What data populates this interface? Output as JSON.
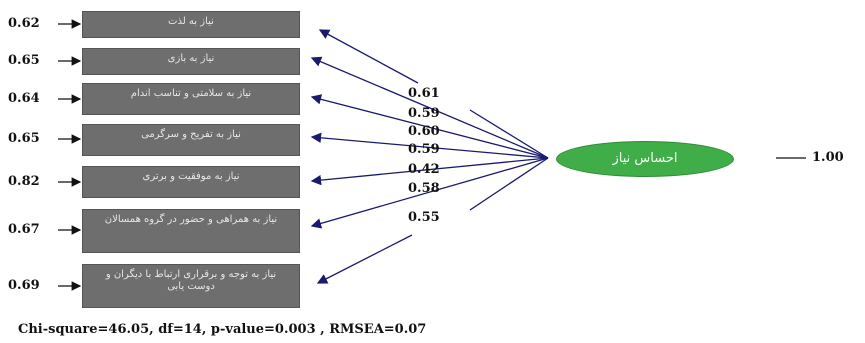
{
  "latent": {
    "label": "احساس نیاز",
    "variance": "1.00"
  },
  "indicators": [
    {
      "label": "نیاز به لذت",
      "error": "0.62 ",
      "loading": "0.61"
    },
    {
      "label": "نیاز به بازی",
      "error": "0.65 ",
      "loading": "0.59"
    },
    {
      "label": "نیاز به سلامتی و تناسب اندام",
      "error": "0.64 ",
      "loading": "0.60"
    },
    {
      "label": "نیاز به تفریح و سرگرمی",
      "error": "0.65 ",
      "loading": "0.59"
    },
    {
      "label": "نیاز به موفقیت و برتری",
      "error": "0.82 ",
      "loading": "0.42"
    },
    {
      "label": "نیاز به همراهی و حضور در گروه همسالان",
      "error": "0.67 ",
      "loading": "0.58"
    },
    {
      "label": "نیاز به توجه و برقراری ارتباط با دیگران و دوست یابی",
      "error": "0.69 ",
      "loading": "0.55"
    }
  ],
  "fit_statistics": "Chi-square=46.05, df=14, p-value=0.003 , RMSEA=0.07"
}
